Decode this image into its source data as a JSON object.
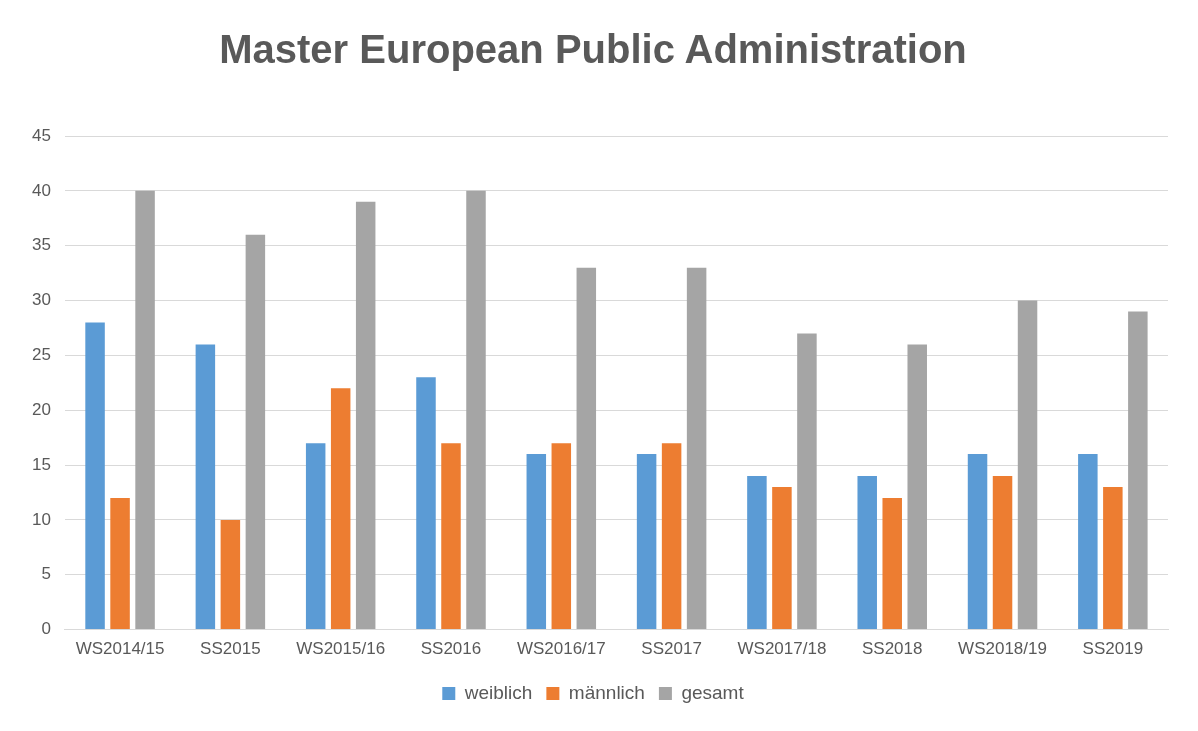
{
  "chart_data": {
    "type": "bar",
    "title": "Master European Public Administration",
    "categories": [
      "WS2014/15",
      "SS2015",
      "WS2015/16",
      "SS2016",
      "WS2016/17",
      "SS2017",
      "WS2017/18",
      "SS2018",
      "WS2018/19",
      "SS2019"
    ],
    "series": [
      {
        "name": "weiblich",
        "color": "#5b9bd5",
        "values": [
          28,
          26,
          17,
          23,
          16,
          16,
          14,
          14,
          16,
          16
        ]
      },
      {
        "name": "männlich",
        "color": "#ed7d31",
        "values": [
          12,
          10,
          22,
          17,
          17,
          17,
          13,
          12,
          14,
          13
        ]
      },
      {
        "name": "gesamt",
        "color": "#a5a5a5",
        "values": [
          40,
          36,
          39,
          40,
          33,
          33,
          27,
          26,
          30,
          29
        ]
      }
    ],
    "ylim": [
      0,
      45
    ],
    "yticks": [
      0,
      5,
      10,
      15,
      20,
      25,
      30,
      35,
      40,
      45
    ],
    "grid": "y",
    "legend": "bottom"
  }
}
